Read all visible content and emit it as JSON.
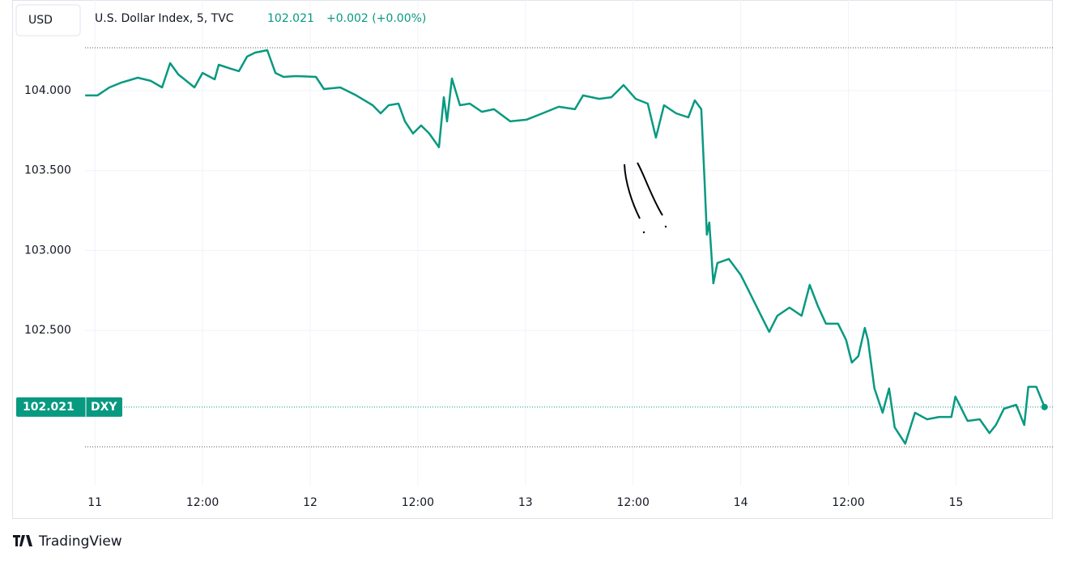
{
  "chart_data": {
    "type": "line",
    "symbol_button": "USD",
    "title": "U.S. Dollar Index, 5, TVC",
    "last": 102.021,
    "change": "+0.002 (+0.00%)",
    "ticker": "DXY",
    "brand": "TradingView",
    "x": [
      -1.08,
      0.27,
      1.62,
      2.98,
      4.78,
      6.23,
      7.49,
      8.39,
      9.3,
      10.2,
      11.1,
      12.0,
      13.36,
      13.81,
      15.16,
      16.06,
      16.97,
      17.87,
      19.22,
      20.13,
      21.03,
      22.38,
      24.64,
      25.54,
      27.35,
      29.15,
      30.96,
      31.86,
      32.76,
      33.84,
      34.57,
      35.47,
      36.37,
      37.27,
      38.36,
      38.9,
      39.26,
      39.8,
      40.7,
      41.79,
      43.14,
      44.49,
      46.3,
      48.1,
      49.91,
      51.71,
      53.52,
      54.42,
      56.23,
      57.58,
      58.94,
      60.29,
      61.64,
      62.55,
      63.45,
      64.8,
      66.16,
      66.88,
      67.6,
      67.96,
      68.23,
      68.5,
      68.95,
      69.4,
      70.67,
      72.02,
      72.92,
      74.28,
      75.18,
      76.08,
      77.44,
      78.79,
      79.69,
      80.6,
      81.5,
      82.85,
      83.75,
      84.39,
      85.11,
      85.83,
      86.19,
      86.91,
      87.82,
      88.54,
      89.17,
      90.34,
      91.43,
      92.78,
      94.13,
      95.49,
      95.94,
      97.29,
      98.65,
      99.73,
      100.45,
      101.35,
      102.71,
      103.61,
      104.06,
      104.96,
      105.87
    ],
    "series": [
      {
        "name": "DXY",
        "color": "#089981",
        "values": [
          103.97,
          103.97,
          104.02,
          104.051,
          104.081,
          104.061,
          104.02,
          104.172,
          104.101,
          104.061,
          104.02,
          104.111,
          104.071,
          104.162,
          104.137,
          104.122,
          104.213,
          104.238,
          104.253,
          104.111,
          104.086,
          104.091,
          104.086,
          104.01,
          104.02,
          103.97,
          103.909,
          103.858,
          103.909,
          103.919,
          103.808,
          103.732,
          103.782,
          103.732,
          103.646,
          103.959,
          103.808,
          104.076,
          103.909,
          103.919,
          103.868,
          103.884,
          103.808,
          103.818,
          103.858,
          103.899,
          103.884,
          103.97,
          103.949,
          103.959,
          104.035,
          103.949,
          103.919,
          103.706,
          103.909,
          103.858,
          103.833,
          103.939,
          103.884,
          103.453,
          103.099,
          103.175,
          102.795,
          102.922,
          102.947,
          102.846,
          102.745,
          102.592,
          102.491,
          102.592,
          102.643,
          102.592,
          102.785,
          102.653,
          102.542,
          102.542,
          102.441,
          102.299,
          102.339,
          102.516,
          102.441,
          102.137,
          101.985,
          102.137,
          101.894,
          101.792,
          101.985,
          101.944,
          101.959,
          101.959,
          102.086,
          101.934,
          101.944,
          101.858,
          101.909,
          102.01,
          102.035,
          101.909,
          102.147,
          102.147,
          102.021
        ]
      }
    ],
    "high": 104.268,
    "low": 101.772,
    "xlim": [
      -1.1,
      106.8
    ],
    "ylim": [
      101.529,
      104.567
    ],
    "xticks": [
      {
        "value": 0,
        "label": "11"
      },
      {
        "value": 12,
        "label": "12:00"
      },
      {
        "value": 24,
        "label": "12"
      },
      {
        "value": 36,
        "label": "12:00"
      },
      {
        "value": 48,
        "label": "13"
      },
      {
        "value": 60,
        "label": "12:00"
      },
      {
        "value": 72,
        "label": "14"
      },
      {
        "value": 84,
        "label": "12:00"
      },
      {
        "value": 96,
        "label": "15"
      }
    ],
    "yticks": [
      {
        "value": 102.5,
        "label": "102.500"
      },
      {
        "value": 103,
        "label": "103.000"
      },
      {
        "value": 103.5,
        "label": "103.500"
      },
      {
        "value": 104,
        "label": "104.000"
      }
    ],
    "grid": true
  }
}
